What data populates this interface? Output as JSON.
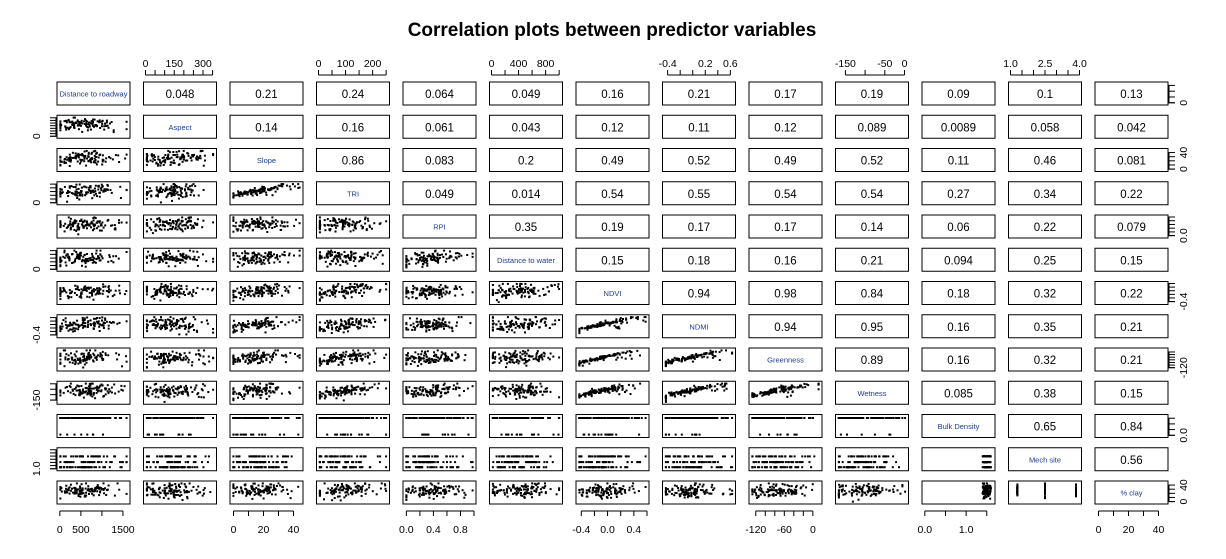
{
  "chart_data": {
    "type": "scatter-matrix",
    "title": "Correlation plots between predictor variables",
    "grid": false,
    "upper_panel": "correlation coefficient",
    "lower_panel": "scatter",
    "variables": [
      {
        "name": "Distance to roadway",
        "range": [
          -20,
          1620
        ],
        "ticks": [
          0,
          500,
          1000,
          1500
        ],
        "x_labels": [
          "0",
          "500",
          "1500"
        ],
        "y_labels": [
          "0"
        ]
      },
      {
        "name": "Aspect",
        "range": [
          0,
          360
        ],
        "ticks": [
          0,
          50,
          100,
          150,
          200,
          250,
          300,
          350
        ],
        "x_labels": [
          "0",
          "150",
          "300"
        ],
        "y_labels": [
          "0"
        ]
      },
      {
        "name": "Slope",
        "range": [
          -1,
          45
        ],
        "ticks": [
          0,
          10,
          20,
          30,
          40
        ],
        "x_labels": [
          "0",
          "20",
          "40"
        ],
        "y_labels": [
          "0",
          "40"
        ]
      },
      {
        "name": "TRI",
        "range": [
          0,
          255
        ],
        "ticks": [
          0,
          50,
          100,
          150,
          200,
          250
        ],
        "x_labels": [
          "0",
          "100",
          "200"
        ],
        "y_labels": [
          "0"
        ]
      },
      {
        "name": "RPI",
        "range": [
          -0.02,
          1.0
        ],
        "ticks": [
          0,
          0.2,
          0.4,
          0.6,
          0.8,
          1.0
        ],
        "x_labels": [
          "0.0",
          "0.4",
          "0.8"
        ],
        "y_labels": [
          "0.0"
        ]
      },
      {
        "name": "Distance to water",
        "range": [
          0,
          1020
        ],
        "ticks": [
          0,
          200,
          400,
          600,
          800,
          1000
        ],
        "x_labels": [
          "0",
          "400",
          "800"
        ],
        "y_labels": [
          "0"
        ]
      },
      {
        "name": "NDVI",
        "range": [
          -0.45,
          0.6
        ],
        "ticks": [
          -0.4,
          -0.2,
          0,
          0.2,
          0.4,
          0.6
        ],
        "x_labels": [
          "-0.4",
          "0.0",
          "0.4"
        ],
        "y_labels": [
          "-0.4"
        ]
      },
      {
        "name": "NDMI",
        "range": [
          -0.45,
          0.65
        ],
        "ticks": [
          -0.4,
          -0.2,
          0,
          0.2,
          0.4,
          0.6
        ],
        "x_labels": [
          "-0.4",
          "0.2",
          "0.6"
        ],
        "y_labels": [
          "-0.4"
        ]
      },
      {
        "name": "Greenness",
        "range": [
          -130,
          15
        ],
        "ticks": [
          -120,
          -100,
          -80,
          -60,
          -40,
          -20,
          0
        ],
        "x_labels": [
          "-120",
          "-60",
          "0"
        ],
        "y_labels": [
          "-120"
        ]
      },
      {
        "name": "Wetness",
        "range": [
          -170,
          5
        ],
        "ticks": [
          -150,
          -100,
          -50,
          0
        ],
        "x_labels": [
          "-150",
          "-50",
          "0"
        ],
        "y_labels": [
          "-150"
        ]
      },
      {
        "name": "Bulk Density",
        "range": [
          -0.02,
          1.65
        ],
        "ticks": [
          0,
          0.5,
          1.0,
          1.5
        ],
        "x_labels": [
          "0.0",
          "1.0"
        ],
        "y_labels": [
          "0.0"
        ]
      },
      {
        "name": "Mech site",
        "range": [
          1,
          4
        ],
        "ticks": [
          1,
          1.5,
          2,
          2.5,
          3,
          3.5,
          4
        ],
        "x_labels": [
          "1.0",
          "2.5",
          "4.0"
        ],
        "y_labels": [
          "1.0"
        ]
      },
      {
        "name": "% clay",
        "range": [
          -1,
          45
        ],
        "ticks": [
          0,
          10,
          20,
          30,
          40
        ],
        "x_labels": [
          "0",
          "20",
          "40"
        ],
        "y_labels": [
          "0",
          "40"
        ]
      }
    ],
    "correlations": [
      [
        null,
        "0.048",
        "0.21",
        "0.24",
        "0.064",
        "0.049",
        "0.16",
        "0.21",
        "0.17",
        "0.19",
        "0.09",
        "0.1",
        "0.13"
      ],
      [
        null,
        null,
        "0.14",
        "0.16",
        "0.061",
        "0.043",
        "0.12",
        "0.11",
        "0.12",
        "0.089",
        "0.0089",
        "0.058",
        "0.042"
      ],
      [
        null,
        null,
        null,
        "0.86",
        "0.083",
        "0.2",
        "0.49",
        "0.52",
        "0.49",
        "0.52",
        "0.11",
        "0.46",
        "0.081"
      ],
      [
        null,
        null,
        null,
        null,
        "0.049",
        "0.014",
        "0.54",
        "0.55",
        "0.54",
        "0.54",
        "0.27",
        "0.34",
        "0.22"
      ],
      [
        null,
        null,
        null,
        null,
        null,
        "0.35",
        "0.19",
        "0.17",
        "0.17",
        "0.14",
        "0.06",
        "0.22",
        "0.079"
      ],
      [
        null,
        null,
        null,
        null,
        null,
        null,
        "0.15",
        "0.18",
        "0.16",
        "0.21",
        "0.094",
        "0.25",
        "0.15"
      ],
      [
        null,
        null,
        null,
        null,
        null,
        null,
        null,
        "0.94",
        "0.98",
        "0.84",
        "0.18",
        "0.32",
        "0.22"
      ],
      [
        null,
        null,
        null,
        null,
        null,
        null,
        null,
        null,
        "0.94",
        "0.95",
        "0.16",
        "0.35",
        "0.21"
      ],
      [
        null,
        null,
        null,
        null,
        null,
        null,
        null,
        null,
        null,
        "0.89",
        "0.16",
        "0.32",
        "0.21"
      ],
      [
        null,
        null,
        null,
        null,
        null,
        null,
        null,
        null,
        null,
        null,
        "0.085",
        "0.38",
        "0.15"
      ],
      [
        null,
        null,
        null,
        null,
        null,
        null,
        null,
        null,
        null,
        null,
        null,
        "0.65",
        "0.84"
      ],
      [
        null,
        null,
        null,
        null,
        null,
        null,
        null,
        null,
        null,
        null,
        null,
        null,
        "0.56"
      ],
      [
        null,
        null,
        null,
        null,
        null,
        null,
        null,
        null,
        null,
        null,
        null,
        null,
        null
      ]
    ],
    "colors": {
      "points": "#000000",
      "variable_labels": "#1f3b8c"
    }
  }
}
